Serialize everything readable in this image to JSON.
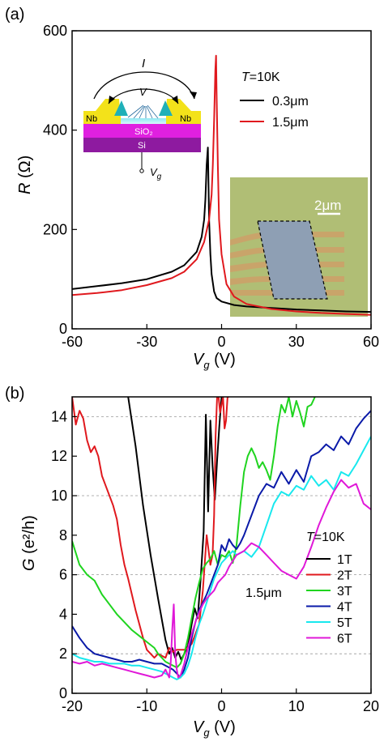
{
  "colors": {
    "black": "#000000",
    "red": "#e0191e",
    "green": "#1fd41f",
    "blue": "#0a1aa8",
    "cyan": "#18e8ee",
    "magenta": "#e018d8"
  },
  "chart_data": [
    {
      "panel_label": "(a)",
      "type": "line",
      "xlabel_main": "V",
      "xlabel_sub": "g",
      "xlabel_unit": " (V)",
      "ylabel_main": "R",
      "ylabel_unit": " (Ω)",
      "xlim": [
        -60,
        60
      ],
      "ylim": [
        0,
        600
      ],
      "xticks": [
        "-60",
        "-30",
        "0",
        "30",
        "60"
      ],
      "yticks": [
        "0",
        "200",
        "400",
        "600"
      ],
      "legend": {
        "title_main": "T",
        "title_rest": "=10K",
        "entries": [
          "0.3μm",
          "1.5μm"
        ]
      },
      "series": [
        {
          "name": "0.3μm",
          "color": "black",
          "x": [
            -60,
            -50,
            -40,
            -30,
            -20,
            -15,
            -10,
            -8,
            -7,
            -6.5,
            -6,
            -5.5,
            -5,
            -4.5,
            -4,
            -3,
            -2,
            0,
            5,
            10,
            20,
            30,
            40,
            50,
            60
          ],
          "y": [
            80,
            86,
            92,
            100,
            115,
            128,
            155,
            185,
            220,
            260,
            330,
            365,
            220,
            150,
            110,
            75,
            62,
            55,
            48,
            45,
            42,
            39,
            37,
            35,
            34
          ]
        },
        {
          "name": "1.5μm",
          "color": "red",
          "x": [
            -60,
            -50,
            -40,
            -30,
            -20,
            -15,
            -10,
            -7,
            -5,
            -4,
            -3.5,
            -3,
            -2.5,
            -2.2,
            -2,
            -1.5,
            -1,
            0,
            2,
            5,
            10,
            20,
            30,
            40,
            50,
            60
          ],
          "y": [
            68,
            72,
            78,
            88,
            102,
            115,
            140,
            175,
            220,
            270,
            330,
            420,
            520,
            550,
            470,
            330,
            220,
            150,
            90,
            65,
            50,
            40,
            35,
            32,
            30,
            28
          ]
        }
      ],
      "inset_schematic": {
        "label_current": "I",
        "label_voltage": "V",
        "left_electrode": "Nb",
        "right_electrode": "Nb",
        "oxide": "SiO₂",
        "substrate": "Si",
        "gate_main": "V",
        "gate_sub": "g"
      },
      "inset_image": {
        "scale_label": "2μm"
      }
    },
    {
      "panel_label": "(b)",
      "type": "line",
      "xlabel_main": "V",
      "xlabel_sub": "g",
      "xlabel_unit": " (V)",
      "ylabel_main": "G",
      "ylabel_unit": " (e²/h)",
      "xlim": [
        -20,
        20
      ],
      "ylim": [
        0,
        15
      ],
      "xticks": [
        "-20",
        "-10",
        "0",
        "10",
        "20"
      ],
      "yticks": [
        "0",
        "2",
        "4",
        "6",
        "8",
        "10",
        "12",
        "14"
      ],
      "grid_y": [
        2,
        6,
        10,
        14
      ],
      "annotation": "1.5μm",
      "legend": {
        "title_main": "T",
        "title_rest": "=10K",
        "entries": [
          "1T",
          "2T",
          "3T",
          "4T",
          "5T",
          "6T"
        ]
      },
      "series": [
        {
          "name": "1T",
          "color": "black",
          "x": [
            -12.5,
            -11.5,
            -10.5,
            -9.5,
            -8.5,
            -7.5,
            -7,
            -6.6,
            -6.2,
            -5.8,
            -5.4,
            -5,
            -4.5,
            -4,
            -3.6,
            -3.2,
            -2.8,
            -2.4,
            -2.1,
            -1.8,
            -1.5,
            -1.2,
            -0.9,
            -0.6,
            -0.3,
            0
          ],
          "y": [
            15,
            12.5,
            9.5,
            7,
            4.8,
            2.7,
            2,
            2.3,
            1.8,
            2.1,
            1.7,
            2.0,
            2.4,
            3.5,
            4.3,
            3.8,
            5.8,
            8.2,
            14.1,
            9.2,
            13.8,
            11.5,
            9.8,
            11.8,
            13.5,
            15
          ]
        },
        {
          "name": "2T",
          "color": "red",
          "x": [
            -20,
            -19.5,
            -19,
            -18.5,
            -18,
            -17.5,
            -17,
            -16.5,
            -16,
            -15.5,
            -15,
            -14.5,
            -14,
            -13.5,
            -13,
            -12.5,
            -12,
            -11.5,
            -11,
            -10.5,
            -10,
            -9.5,
            -9,
            -8.5,
            -8,
            -7.5,
            -7,
            -6.5,
            -6,
            -5.5,
            -5,
            -4.5,
            -4,
            -3.5,
            -3,
            -2.5,
            -2,
            -1.5,
            -1.2,
            -1,
            -0.8,
            -0.6,
            -0.4,
            -0.2,
            0,
            0.2,
            0.4,
            0.6,
            0.8,
            1.0
          ],
          "y": [
            15,
            13.6,
            14.3,
            13.9,
            12.8,
            12.2,
            12.5,
            12,
            11,
            10.5,
            10,
            9.5,
            8.8,
            7.5,
            6.5,
            5.8,
            5.0,
            4.2,
            3.5,
            2.8,
            2.2,
            2.0,
            1.8,
            2.0,
            1.9,
            1.8,
            2.3,
            2.1,
            2.2,
            2.2,
            2.2,
            2.3,
            2.5,
            3.0,
            3.5,
            5.2,
            8.0,
            6.5,
            7.0,
            9.0,
            13.0,
            15,
            15,
            14.2,
            14.6,
            15,
            13.4,
            13.8,
            15,
            15
          ]
        },
        {
          "name": "3T",
          "color": "green",
          "x": [
            -20,
            -19,
            -18,
            -17,
            -16,
            -15,
            -14,
            -13,
            -12,
            -11,
            -10,
            -9,
            -8.5,
            -8,
            -7.5,
            -7,
            -6.5,
            -6,
            -5.5,
            -5,
            -4.5,
            -4,
            -3.5,
            -3,
            -2.5,
            -2,
            -1.5,
            -1,
            -0.5,
            0,
            0.5,
            1,
            1.5,
            2,
            2.5,
            3,
            3.5,
            4,
            4.5,
            5,
            5.5,
            6,
            6.5,
            7,
            7.5,
            8,
            8.5,
            9,
            9.5,
            10,
            10.5,
            11,
            11.5,
            12,
            12.5
          ],
          "y": [
            7.7,
            6.5,
            6.0,
            5.7,
            5.0,
            4.5,
            4.0,
            3.6,
            3.2,
            2.9,
            2.6,
            2.3,
            2.0,
            1.8,
            1.6,
            1.5,
            1.4,
            1.3,
            1.5,
            2.0,
            2.8,
            3.8,
            4.8,
            5.6,
            6.3,
            6.6,
            6.8,
            7.2,
            6.5,
            7.0,
            6.9,
            7.2,
            6.6,
            7.5,
            9.5,
            11.2,
            12.0,
            12.4,
            12.0,
            11.4,
            11.7,
            11.3,
            10.8,
            12.0,
            13.5,
            14.6,
            14.2,
            15,
            14.0,
            14.8,
            14.2,
            13.5,
            14.5,
            14.6,
            15
          ]
        },
        {
          "name": "4T",
          "color": "blue",
          "x": [
            -20,
            -19,
            -18,
            -17,
            -16,
            -15,
            -14,
            -13,
            -12,
            -11,
            -10,
            -9,
            -8,
            -7,
            -6.5,
            -6,
            -5.5,
            -5,
            -4.5,
            -4,
            -3.5,
            -3,
            -2.5,
            -2,
            -1.5,
            -1,
            -0.5,
            0,
            0.5,
            1,
            1.5,
            2,
            2.5,
            3,
            4,
            5,
            6,
            7,
            8,
            9,
            10,
            11,
            12,
            13,
            14,
            15,
            16,
            17,
            18,
            19,
            20
          ],
          "y": [
            3.4,
            2.8,
            2.3,
            2.0,
            1.9,
            1.8,
            1.7,
            1.6,
            1.6,
            1.7,
            1.6,
            1.5,
            1.5,
            1.3,
            1.2,
            1.0,
            0.8,
            1.2,
            1.8,
            2.8,
            3.6,
            4.2,
            4.6,
            5.0,
            5.5,
            6.0,
            6.5,
            7.5,
            7.2,
            7.8,
            7.5,
            7.3,
            7.6,
            8.0,
            9.0,
            10.0,
            10.6,
            10.4,
            11.2,
            10.6,
            11.3,
            10.7,
            12.0,
            12.2,
            12.6,
            12.3,
            13.0,
            12.6,
            13.4,
            13.9,
            14.3
          ]
        },
        {
          "name": "5T",
          "color": "cyan",
          "x": [
            -20,
            -19,
            -18,
            -17,
            -16,
            -15,
            -14,
            -13,
            -12,
            -11,
            -10,
            -9,
            -8,
            -7,
            -6.5,
            -6,
            -5.5,
            -5,
            -4.5,
            -4,
            -3.5,
            -3,
            -2.5,
            -2,
            -1.5,
            -1,
            -0.5,
            0,
            0.5,
            1,
            1.5,
            2,
            3,
            4,
            5,
            6,
            7,
            8,
            9,
            10,
            11,
            12,
            13,
            14,
            15,
            16,
            17,
            18,
            19,
            20
          ],
          "y": [
            2.0,
            1.8,
            1.7,
            1.6,
            1.6,
            1.5,
            1.5,
            1.5,
            1.4,
            1.4,
            1.3,
            1.2,
            1.1,
            0.9,
            0.8,
            0.7,
            0.8,
            1.0,
            1.4,
            2.0,
            2.8,
            3.5,
            4.0,
            4.6,
            5.2,
            5.8,
            6.2,
            6.6,
            6.8,
            7.0,
            7.2,
            7.0,
            7.2,
            6.9,
            7.4,
            8.5,
            9.6,
            10.2,
            10.0,
            10.5,
            10.3,
            11.0,
            10.5,
            10.8,
            10.3,
            11.2,
            11.0,
            11.6,
            12.3,
            13.0
          ]
        },
        {
          "name": "6T",
          "color": "magenta",
          "x": [
            -20,
            -19,
            -18,
            -17,
            -16,
            -15,
            -14,
            -13,
            -12,
            -11,
            -10,
            -9,
            -8,
            -7.5,
            -7,
            -6.8,
            -6.6,
            -6.4,
            -6.2,
            -6,
            -5.8,
            -5.5,
            -5,
            -4.5,
            -4,
            -3.5,
            -3,
            -2.5,
            -2,
            -1.5,
            -1,
            -0.5,
            0,
            0.5,
            1,
            2,
            3,
            4,
            5,
            6,
            7,
            8,
            9,
            10,
            11,
            12,
            13,
            14,
            15,
            16,
            17,
            18,
            19,
            20
          ],
          "y": [
            1.6,
            1.5,
            1.6,
            1.4,
            1.5,
            1.4,
            1.3,
            1.2,
            1.1,
            1.0,
            0.9,
            0.8,
            0.9,
            1.2,
            0.8,
            1.6,
            3.2,
            4.5,
            2.0,
            1.2,
            0.8,
            0.9,
            1.5,
            2.3,
            3.0,
            3.6,
            4.1,
            4.5,
            4.8,
            5.0,
            5.2,
            5.6,
            5.8,
            6.0,
            6.4,
            7.0,
            7.2,
            7.6,
            7.4,
            7.0,
            6.6,
            6.2,
            6.0,
            5.8,
            6.4,
            7.4,
            8.5,
            9.4,
            10.2,
            10.8,
            10.4,
            10.6,
            9.6,
            9.3
          ]
        }
      ]
    }
  ]
}
